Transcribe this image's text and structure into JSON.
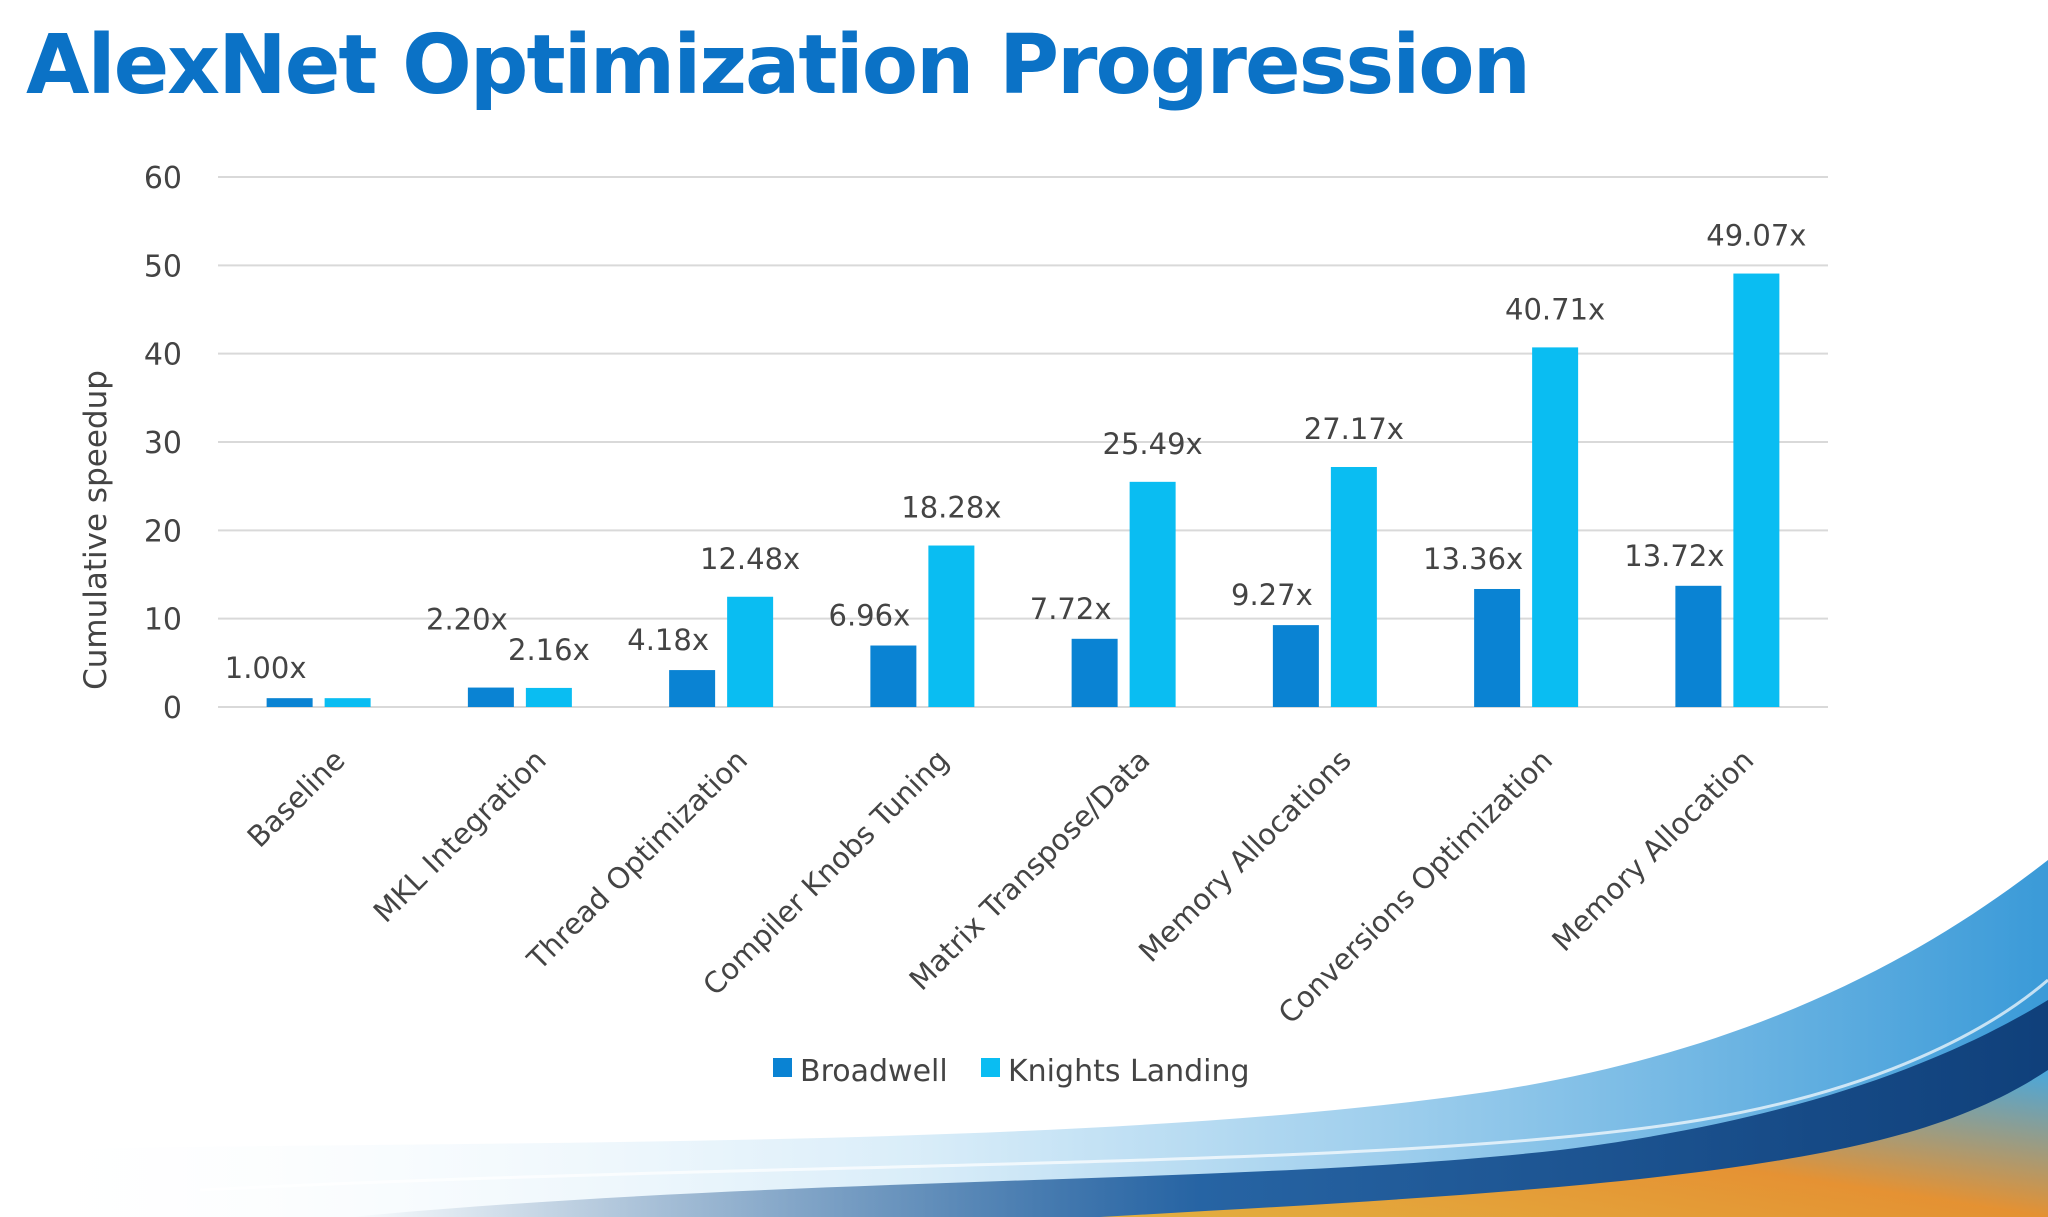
{
  "slide": {
    "title": "AlexNet Optimization Progression"
  },
  "colors": {
    "title": "#0b72c6",
    "broadwell": "#0a83d3",
    "knights_landing": "#0abdf2",
    "text": "#444444",
    "grid": "#d9d9d9"
  },
  "chart_data": {
    "type": "bar",
    "title": "",
    "xlabel": "",
    "ylabel": "Cumulative speedup",
    "ylim": [
      0,
      60
    ],
    "yticks": [
      0,
      10,
      20,
      30,
      40,
      50,
      60
    ],
    "grid": true,
    "legend_position": "bottom",
    "categories": [
      "Baseline",
      "MKL Integration",
      "Thread Optimization",
      "Compiler Knobs Tuning",
      "Matrix Transpose/Data",
      "Memory Allocations",
      "Conversions Optimization",
      "Memory Allocation"
    ],
    "series": [
      {
        "name": "Broadwell",
        "values": [
          1.0,
          2.2,
          4.18,
          6.96,
          7.72,
          9.27,
          13.36,
          13.72
        ],
        "labels": [
          "1.00x",
          "2.20x",
          "4.18x",
          "6.96x",
          "7.72x",
          "9.27x",
          "13.36x",
          "13.72x"
        ]
      },
      {
        "name": "Knights Landing",
        "values": [
          1.0,
          2.16,
          12.48,
          18.28,
          25.49,
          27.17,
          40.71,
          49.07
        ],
        "labels": [
          "",
          "2.16x",
          "12.48x",
          "18.28x",
          "25.49x",
          "27.17x",
          "40.71x",
          "49.07x"
        ]
      }
    ]
  }
}
